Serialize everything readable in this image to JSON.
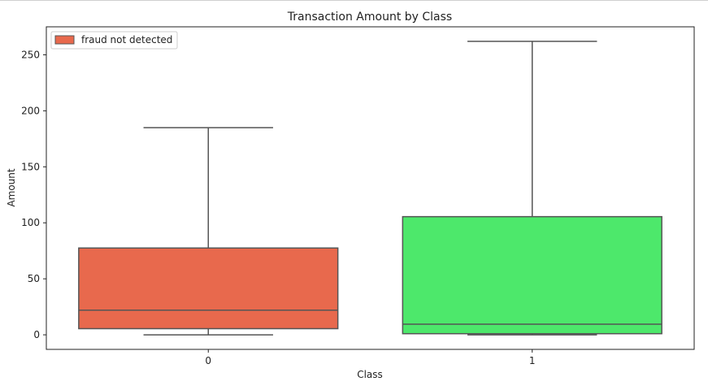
{
  "chart_data": {
    "type": "box",
    "title": "Transaction Amount by Class",
    "xlabel": "Class",
    "ylabel": "Amount",
    "ylim": [
      -13,
      275
    ],
    "yticks": [
      0,
      50,
      100,
      150,
      200,
      250
    ],
    "grid": false,
    "legend": {
      "placement": "top-left",
      "entries": [
        {
          "label": "fraud not detected",
          "color": "#e8694d"
        }
      ]
    },
    "categories": [
      "0",
      "1"
    ],
    "boxes": [
      {
        "category": "0",
        "whisker_low": 0,
        "q1": 5.5,
        "median": 22,
        "q3": 77.5,
        "whisker_high": 185,
        "color": "#e8694d"
      },
      {
        "category": "1",
        "whisker_low": 0,
        "q1": 1,
        "median": 9.5,
        "q3": 105.5,
        "whisker_high": 262,
        "color": "#4de86b"
      }
    ]
  }
}
